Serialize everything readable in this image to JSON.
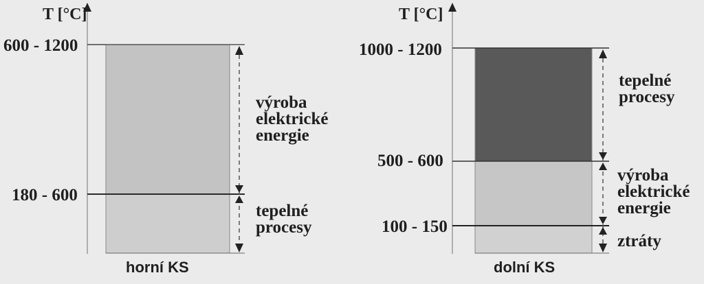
{
  "diagrams": [
    {
      "axis_label": "T [°C]",
      "caption": "horní KS",
      "ticks": [
        "600 - 1200",
        "180 - 600"
      ],
      "segments": [
        {
          "label_lines": [
            "výroba",
            "elektrické",
            "energie"
          ],
          "shade": "#c3c3c3"
        },
        {
          "label_lines": [
            "tepelné",
            "procesy"
          ],
          "shade": "#cecece"
        }
      ]
    },
    {
      "axis_label": "T [°C]",
      "caption": "dolní KS",
      "ticks": [
        "1000 - 1200",
        "500 - 600",
        "100 - 150"
      ],
      "segments": [
        {
          "label_lines": [
            "tepelné",
            "procesy"
          ],
          "shade": "#595959"
        },
        {
          "label_lines": [
            "výroba",
            "elektrické",
            "energie"
          ],
          "shade": "#c6c6c6"
        },
        {
          "label_lines": [
            "ztráty"
          ],
          "shade": "#d1d1d1"
        }
      ]
    }
  ]
}
